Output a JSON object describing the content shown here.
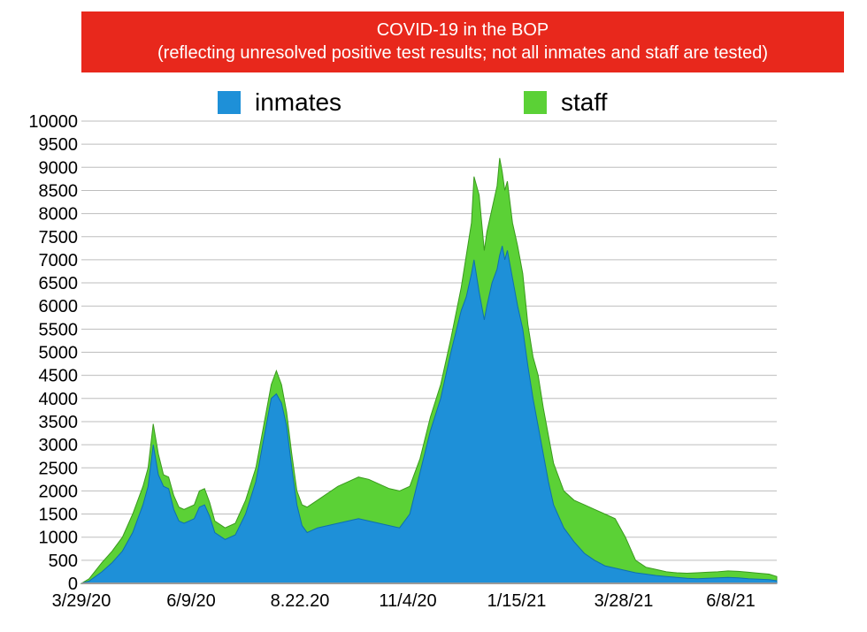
{
  "title": {
    "line1": "COVID-19 in the BOP",
    "line2": "(reflecting unresolved positive test results; not all inmates and staff are tested)"
  },
  "colors": {
    "banner": "#e8281c",
    "inmates": "#1e90d8",
    "staff": "#5bd136",
    "grid": "#bdbdbd"
  },
  "chart_data": {
    "type": "area",
    "stacked": true,
    "title": "COVID-19 in the BOP",
    "subtitle": "(reflecting unresolved positive test results; not all inmates and staff are tested)",
    "ylim": [
      0,
      10000
    ],
    "y_ticks": [
      0,
      500,
      1000,
      1500,
      2000,
      2500,
      3000,
      3500,
      4000,
      4500,
      5000,
      5500,
      6000,
      6500,
      7000,
      7500,
      8000,
      8500,
      9000,
      9500,
      10000
    ],
    "x_tick_labels": [
      "3/29/20",
      "6/9/20",
      "8.22.20",
      "11/4/20",
      "1/15/21",
      "3/28/21",
      "6/8/21"
    ],
    "legend_position": "top",
    "grid": true,
    "series": [
      {
        "name": "inmates",
        "color": "#1e90d8",
        "points": [
          [
            0,
            0
          ],
          [
            3,
            50
          ],
          [
            8,
            250
          ],
          [
            12,
            450
          ],
          [
            16,
            700
          ],
          [
            20,
            1100
          ],
          [
            24,
            1700
          ],
          [
            26,
            2100
          ],
          [
            28,
            3000
          ],
          [
            30,
            2350
          ],
          [
            32,
            2100
          ],
          [
            34,
            2050
          ],
          [
            36,
            1600
          ],
          [
            38,
            1350
          ],
          [
            40,
            1300
          ],
          [
            42,
            1350
          ],
          [
            44,
            1400
          ],
          [
            46,
            1650
          ],
          [
            48,
            1700
          ],
          [
            50,
            1450
          ],
          [
            52,
            1100
          ],
          [
            56,
            950
          ],
          [
            60,
            1050
          ],
          [
            64,
            1500
          ],
          [
            68,
            2200
          ],
          [
            72,
            3400
          ],
          [
            74,
            4000
          ],
          [
            76,
            4100
          ],
          [
            78,
            3900
          ],
          [
            80,
            3400
          ],
          [
            82,
            2500
          ],
          [
            84,
            1700
          ],
          [
            86,
            1250
          ],
          [
            88,
            1100
          ],
          [
            92,
            1200
          ],
          [
            96,
            1250
          ],
          [
            100,
            1300
          ],
          [
            104,
            1350
          ],
          [
            108,
            1400
          ],
          [
            112,
            1350
          ],
          [
            116,
            1300
          ],
          [
            120,
            1250
          ],
          [
            124,
            1200
          ],
          [
            128,
            1500
          ],
          [
            132,
            2400
          ],
          [
            136,
            3300
          ],
          [
            140,
            4000
          ],
          [
            144,
            5000
          ],
          [
            148,
            5900
          ],
          [
            150,
            6200
          ],
          [
            152,
            6700
          ],
          [
            153,
            7000
          ],
          [
            155,
            6300
          ],
          [
            157,
            5700
          ],
          [
            158,
            6000
          ],
          [
            160,
            6500
          ],
          [
            162,
            6800
          ],
          [
            163,
            7100
          ],
          [
            164,
            7300
          ],
          [
            165,
            7000
          ],
          [
            166,
            7200
          ],
          [
            168,
            6600
          ],
          [
            170,
            6000
          ],
          [
            172,
            5500
          ],
          [
            174,
            4700
          ],
          [
            176,
            4000
          ],
          [
            178,
            3400
          ],
          [
            180,
            2800
          ],
          [
            182,
            2200
          ],
          [
            184,
            1700
          ],
          [
            188,
            1200
          ],
          [
            192,
            900
          ],
          [
            196,
            650
          ],
          [
            200,
            500
          ],
          [
            204,
            380
          ],
          [
            208,
            330
          ],
          [
            212,
            280
          ],
          [
            216,
            230
          ],
          [
            220,
            200
          ],
          [
            224,
            170
          ],
          [
            228,
            150
          ],
          [
            232,
            130
          ],
          [
            236,
            110
          ],
          [
            240,
            100
          ],
          [
            244,
            110
          ],
          [
            248,
            120
          ],
          [
            252,
            130
          ],
          [
            256,
            120
          ],
          [
            260,
            100
          ],
          [
            264,
            90
          ],
          [
            268,
            80
          ],
          [
            271,
            60
          ]
        ]
      },
      {
        "name": "staff",
        "color": "#5bd136",
        "points": [
          [
            0,
            0
          ],
          [
            3,
            100
          ],
          [
            8,
            450
          ],
          [
            12,
            700
          ],
          [
            16,
            1000
          ],
          [
            20,
            1500
          ],
          [
            24,
            2100
          ],
          [
            26,
            2500
          ],
          [
            28,
            3450
          ],
          [
            30,
            2800
          ],
          [
            32,
            2350
          ],
          [
            34,
            2300
          ],
          [
            36,
            1900
          ],
          [
            38,
            1650
          ],
          [
            40,
            1600
          ],
          [
            42,
            1650
          ],
          [
            44,
            1700
          ],
          [
            46,
            2000
          ],
          [
            48,
            2050
          ],
          [
            50,
            1750
          ],
          [
            52,
            1350
          ],
          [
            56,
            1200
          ],
          [
            60,
            1300
          ],
          [
            64,
            1800
          ],
          [
            68,
            2500
          ],
          [
            72,
            3700
          ],
          [
            74,
            4300
          ],
          [
            76,
            4600
          ],
          [
            78,
            4300
          ],
          [
            80,
            3700
          ],
          [
            82,
            2800
          ],
          [
            84,
            2000
          ],
          [
            86,
            1700
          ],
          [
            88,
            1650
          ],
          [
            92,
            1800
          ],
          [
            96,
            1950
          ],
          [
            100,
            2100
          ],
          [
            104,
            2200
          ],
          [
            108,
            2300
          ],
          [
            112,
            2250
          ],
          [
            116,
            2150
          ],
          [
            120,
            2050
          ],
          [
            124,
            2000
          ],
          [
            128,
            2100
          ],
          [
            132,
            2700
          ],
          [
            136,
            3600
          ],
          [
            140,
            4300
          ],
          [
            144,
            5300
          ],
          [
            148,
            6400
          ],
          [
            150,
            7100
          ],
          [
            152,
            7800
          ],
          [
            153,
            8800
          ],
          [
            155,
            8400
          ],
          [
            157,
            7200
          ],
          [
            158,
            7600
          ],
          [
            160,
            8100
          ],
          [
            162,
            8600
          ],
          [
            163,
            9200
          ],
          [
            164,
            8900
          ],
          [
            165,
            8500
          ],
          [
            166,
            8700
          ],
          [
            168,
            7800
          ],
          [
            170,
            7300
          ],
          [
            172,
            6700
          ],
          [
            174,
            5600
          ],
          [
            176,
            4900
          ],
          [
            178,
            4500
          ],
          [
            180,
            3800
          ],
          [
            182,
            3200
          ],
          [
            184,
            2600
          ],
          [
            188,
            2000
          ],
          [
            192,
            1800
          ],
          [
            196,
            1700
          ],
          [
            200,
            1600
          ],
          [
            204,
            1500
          ],
          [
            208,
            1400
          ],
          [
            212,
            1000
          ],
          [
            216,
            500
          ],
          [
            220,
            350
          ],
          [
            224,
            300
          ],
          [
            228,
            250
          ],
          [
            232,
            230
          ],
          [
            236,
            220
          ],
          [
            240,
            230
          ],
          [
            244,
            240
          ],
          [
            248,
            250
          ],
          [
            252,
            270
          ],
          [
            256,
            260
          ],
          [
            260,
            240
          ],
          [
            264,
            220
          ],
          [
            268,
            200
          ],
          [
            271,
            150
          ]
        ]
      }
    ]
  }
}
